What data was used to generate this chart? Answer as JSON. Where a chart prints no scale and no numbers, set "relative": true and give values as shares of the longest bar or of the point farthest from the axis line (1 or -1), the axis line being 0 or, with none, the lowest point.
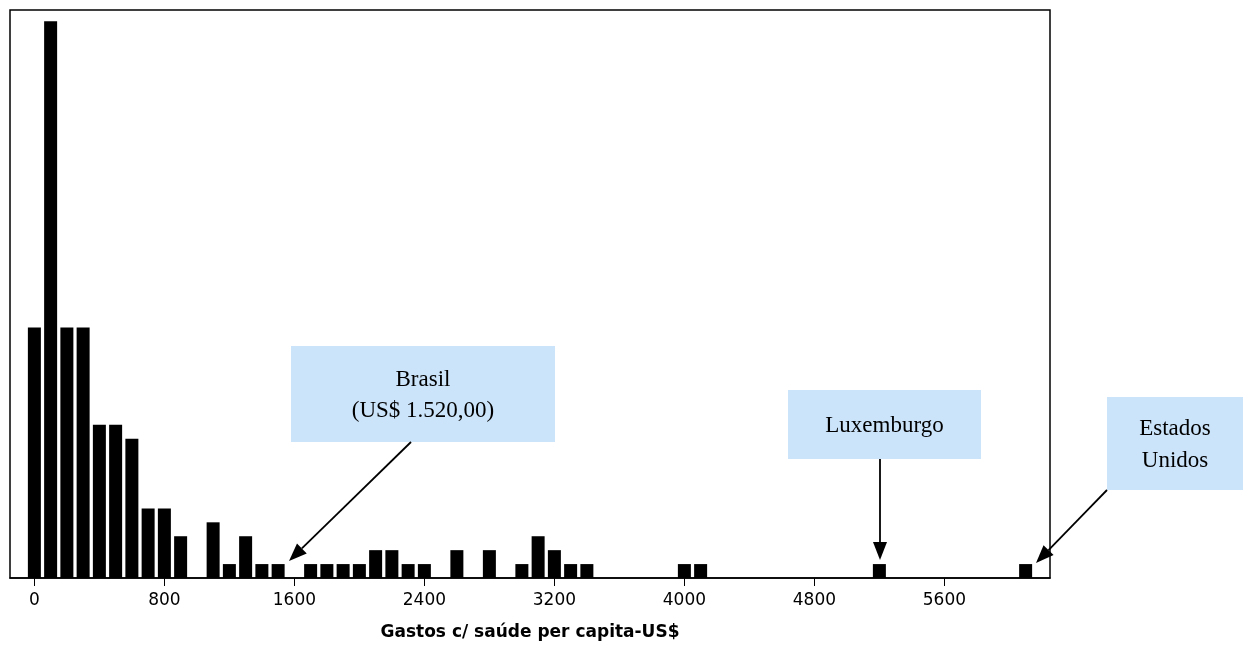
{
  "chart_data": {
    "type": "bar",
    "xlabel": "Gastos c/ saúde per capita-US$",
    "relative": true,
    "xlim": [
      -150,
      6250
    ],
    "xticks": [
      0,
      800,
      1600,
      2400,
      3200,
      4000,
      4800,
      5600
    ],
    "series": [
      {
        "color": "#000000",
        "x": [
          0,
          100,
          200,
          300,
          400,
          500,
          600,
          700,
          800,
          900,
          1100,
          1200,
          1300,
          1400,
          1500,
          1700,
          1800,
          1900,
          2000,
          2100,
          2200,
          2300,
          2400,
          2600,
          2800,
          3000,
          3100,
          3200,
          3300,
          3400,
          4000,
          4100,
          5200,
          6100
        ],
        "values": [
          0.45,
          1,
          0.45,
          0.45,
          0.275,
          0.275,
          0.25,
          0.125,
          0.125,
          0.075,
          0.1,
          0.025,
          0.075,
          0.025,
          0.025,
          0.025,
          0.025,
          0.025,
          0.025,
          0.05,
          0.05,
          0.025,
          0.025,
          0.05,
          0.05,
          0.025,
          0.075,
          0.05,
          0.025,
          0.025,
          0.025,
          0.025,
          0.025,
          0.025
        ]
      }
    ],
    "annotations": [
      "Brasil\n(US$ 1.520,00)",
      "Luxemburgo",
      "Estados\nUnidos"
    ]
  }
}
